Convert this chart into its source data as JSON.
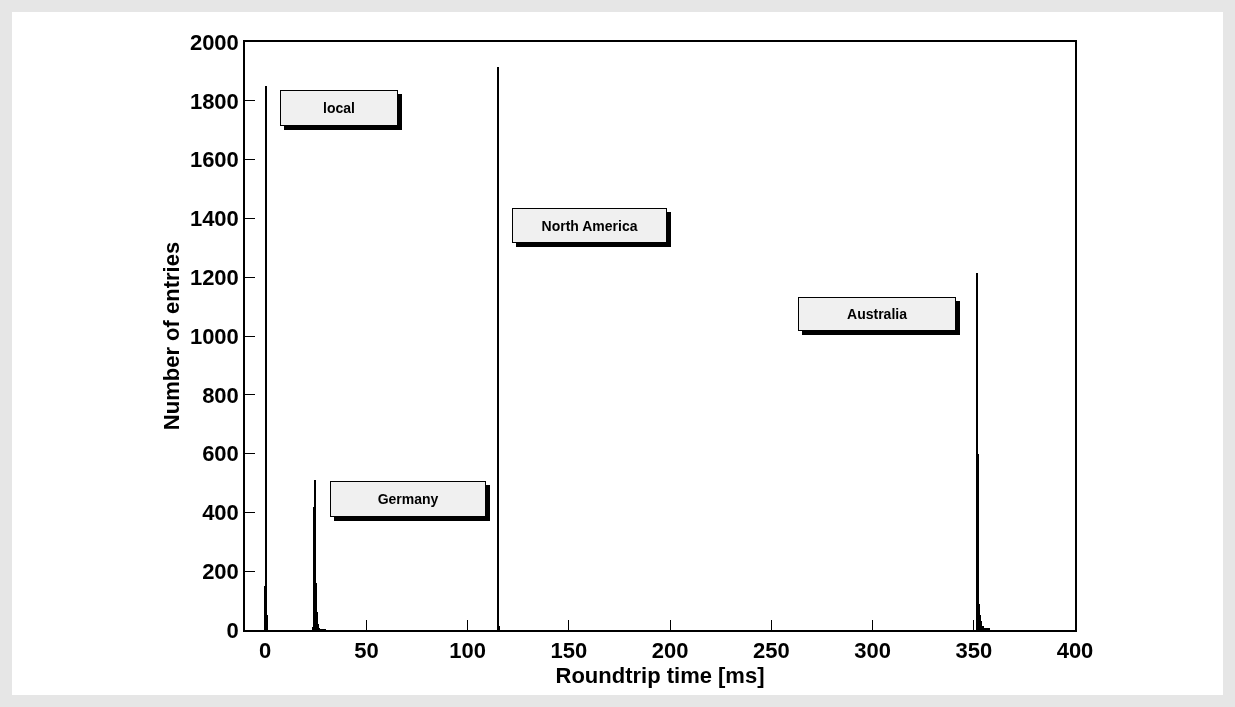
{
  "chart_data": {
    "type": "histogram",
    "xlabel": "Roundtrip time [ms]",
    "ylabel": "Number of entries",
    "color": "#000000",
    "bins": [
      -0.5,
      0,
      0.5,
      1,
      23.5,
      24,
      24.5,
      25,
      25.5,
      26,
      26.5,
      27,
      30,
      114.5,
      115,
      115.5,
      351.5,
      352,
      352.5,
      353,
      353.5,
      354,
      355,
      358
    ],
    "values": [
      150,
      1850,
      50,
      0,
      10,
      420,
      510,
      160,
      60,
      20,
      8,
      2,
      0,
      1915,
      15,
      0,
      1215,
      600,
      90,
      50,
      30,
      15,
      5
    ],
    "xlim": [
      -10,
      400
    ],
    "xticks": [
      0,
      50,
      100,
      150,
      200,
      250,
      300,
      350,
      400
    ],
    "ylim": [
      0,
      2000
    ],
    "yticks": [
      0,
      200,
      400,
      600,
      800,
      1000,
      1200,
      1400,
      1600,
      1800,
      2000
    ],
    "grid": false,
    "annotations": [
      "local",
      "Germany",
      "North America",
      "Australia"
    ]
  }
}
